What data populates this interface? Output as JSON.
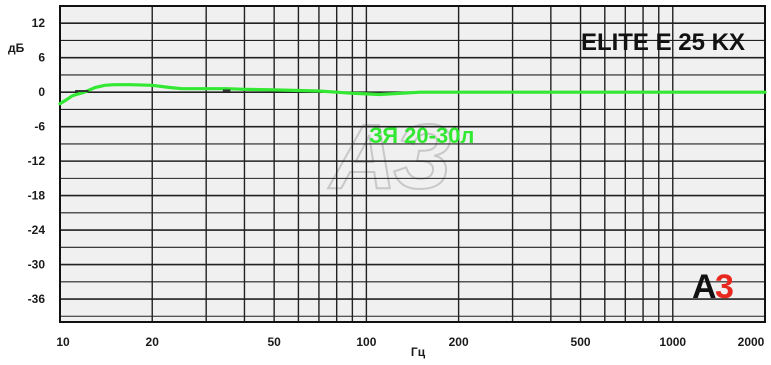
{
  "chart_data": {
    "type": "line",
    "title": "ELITE  E 25 KX",
    "xlabel": "Гц",
    "ylabel": "дБ",
    "xscale": "log",
    "xlim": [
      10,
      2000
    ],
    "ylim": [
      -40,
      15
    ],
    "x_ticks": [
      10,
      20,
      50,
      100,
      200,
      500,
      1000,
      2000
    ],
    "x_tick_labels": [
      "10",
      "20",
      "50",
      "100",
      "200",
      "500",
      "1000",
      "2000"
    ],
    "y_ticks": [
      12,
      6,
      0,
      -6,
      -12,
      -18,
      -24,
      -30,
      -36
    ],
    "y_tick_labels": [
      "12",
      "6",
      "0",
      "-6",
      "-12",
      "-18",
      "-24",
      "-30",
      "-36"
    ],
    "grid": true,
    "series": [
      {
        "name": "ЗЯ 20-30л",
        "color": "#33e833",
        "x": [
          10,
          10.5,
          11,
          12,
          13,
          14,
          15,
          17,
          20,
          23,
          25,
          30,
          35,
          40,
          50,
          60,
          70,
          80,
          90,
          100,
          110,
          120,
          150,
          200,
          300,
          500,
          1000,
          2000
        ],
        "y": [
          -2,
          -1.3,
          -0.6,
          0,
          0.8,
          1.2,
          1.3,
          1.3,
          1.2,
          0.8,
          0.6,
          0.6,
          0.6,
          0.5,
          0.4,
          0.3,
          0.2,
          0,
          -0.2,
          -0.3,
          -0.4,
          -0.3,
          0,
          0,
          0,
          0,
          0,
          0
        ]
      }
    ],
    "logo": "A3",
    "logo_colors": {
      "A": "#111111",
      "3": "#e8281e"
    },
    "watermark": "АЗ"
  },
  "colors": {
    "plot_background": "#f0f0f0",
    "grid": "#222222",
    "series": "#33e833"
  }
}
